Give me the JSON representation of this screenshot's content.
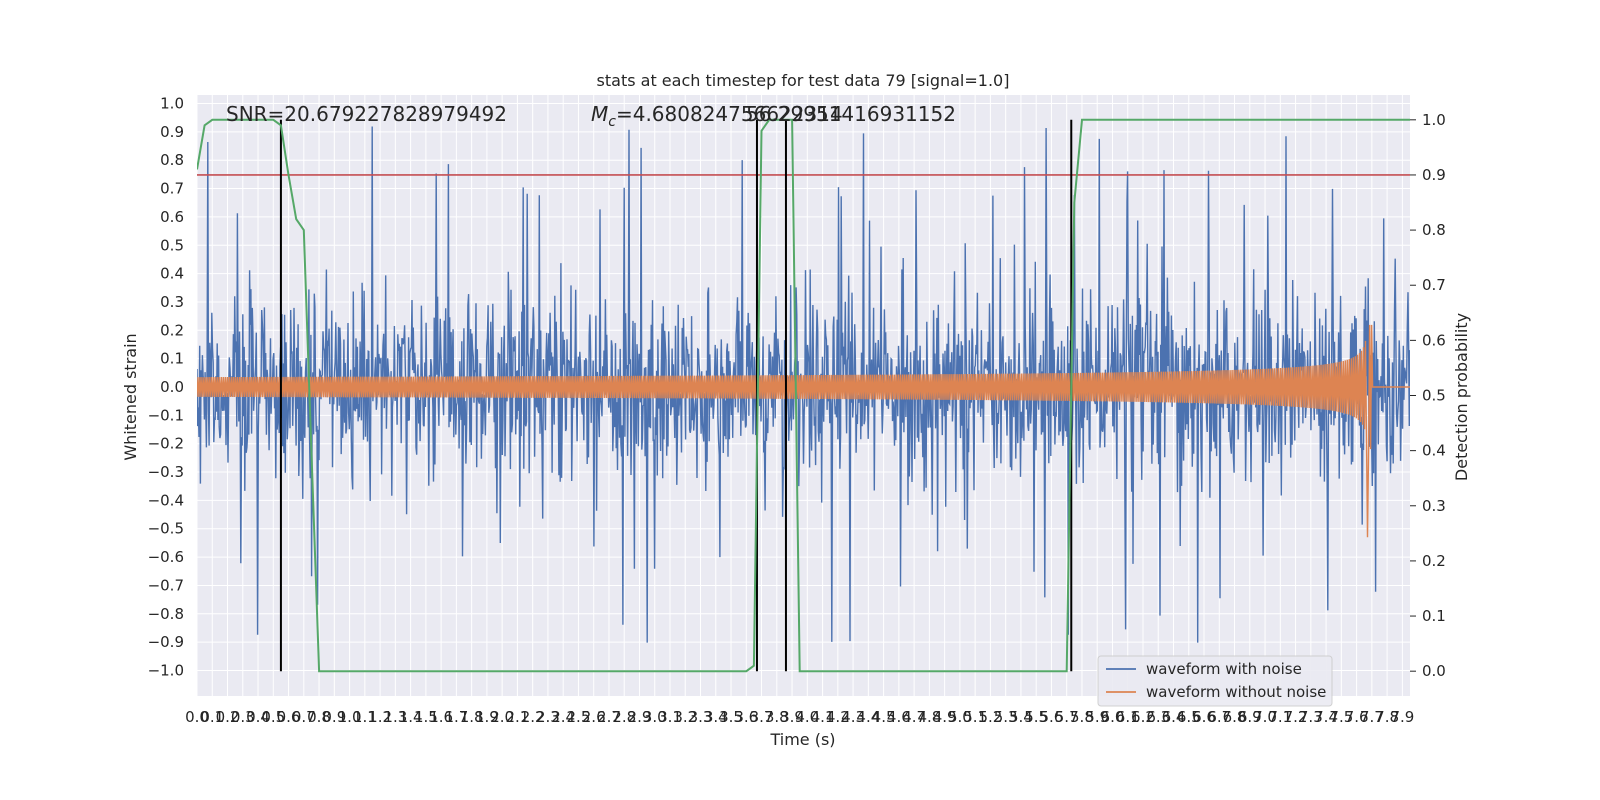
{
  "chart_data": {
    "type": "line",
    "title": "stats at each timestep for test data 79 [signal=1.0]",
    "xlabel": "Time (s)",
    "ylabel": "Whitened strain",
    "y2label": "Detection probability",
    "xlim": [
      0,
      7.95
    ],
    "ylim": [
      -1.09,
      1.03
    ],
    "y2lim": [
      -0.045,
      1.045
    ],
    "x_ticks": [
      "0.0",
      "0.1",
      "0.2",
      "0.3",
      "0.4",
      "0.5",
      "0.6",
      "0.7",
      "0.8",
      "0.9",
      "1.0",
      "1.1",
      "1.2",
      "1.3",
      "1.4",
      "1.5",
      "1.6",
      "1.7",
      "1.8",
      "1.9",
      "2.0",
      "2.1",
      "2.2",
      "2.3",
      "2.4",
      "2.5",
      "2.6",
      "2.7",
      "2.8",
      "2.9",
      "3.0",
      "3.1",
      "3.2",
      "3.3",
      "3.4",
      "3.5",
      "3.6",
      "3.7",
      "3.8",
      "3.9",
      "4.0",
      "4.1",
      "4.2",
      "4.3",
      "4.4",
      "4.5",
      "4.6",
      "4.7",
      "4.8",
      "4.9",
      "5.0",
      "5.1",
      "5.2",
      "5.3",
      "5.4",
      "5.5",
      "5.6",
      "5.7",
      "5.8",
      "5.9",
      "6.0",
      "6.1",
      "6.2",
      "6.3",
      "6.4",
      "6.5",
      "6.6",
      "6.7",
      "6.8",
      "6.9",
      "7.0",
      "7.1",
      "7.2",
      "7.3",
      "7.4",
      "7.5",
      "7.6",
      "7.7",
      "7.8",
      "7.9"
    ],
    "y_ticks": [
      "1.0",
      "0.9",
      "0.8",
      "0.7",
      "0.6",
      "0.5",
      "0.4",
      "0.3",
      "0.2",
      "0.1",
      "0.0",
      "−0.1",
      "−0.2",
      "−0.3",
      "−0.4",
      "−0.5",
      "−0.6",
      "−0.7",
      "−0.8",
      "−0.9",
      "−1.0"
    ],
    "y2_ticks": [
      "1.0",
      "0.9",
      "0.8",
      "0.7",
      "0.6",
      "0.5",
      "0.4",
      "0.3",
      "0.2",
      "0.1",
      "0.0"
    ],
    "annotations": {
      "snr": "SNR=20.679227828979492",
      "mc": "=4.680824756622314",
      "mc_symbol": "M",
      "mc_subscript": "c",
      "overlap": "56.29951416931152"
    },
    "series": [
      {
        "name": "waveform with noise",
        "color": "#4c72b0",
        "style": "noise",
        "amplitude_typical": 0.35,
        "amplitude_peak": 0.92
      },
      {
        "name": "waveform without noise",
        "color": "#dd8452",
        "style": "chirp",
        "start_amplitude": 0.035,
        "peak_amplitude": 0.37,
        "peak_x": 7.67,
        "min_value": -0.53,
        "end_x": 7.7
      }
    ],
    "detection_probability": {
      "color": "#55a868",
      "x": [
        0.0,
        0.05,
        0.1,
        0.15,
        0.2,
        0.3,
        0.4,
        0.5,
        0.55,
        0.6,
        0.65,
        0.7,
        0.75,
        0.8,
        3.6,
        3.65,
        3.7,
        3.75,
        3.8,
        3.85,
        3.9,
        3.95,
        5.65,
        5.7,
        5.75,
        5.8,
        5.85,
        5.9,
        7.95
      ],
      "y": [
        0.91,
        0.99,
        1.0,
        1.0,
        1.0,
        1.0,
        1.0,
        1.0,
        0.99,
        0.9,
        0.82,
        0.8,
        0.4,
        0.0,
        0.0,
        0.01,
        0.98,
        1.0,
        1.0,
        1.0,
        1.0,
        0.0,
        0.0,
        0.0,
        0.85,
        1.0,
        1.0,
        1.0,
        1.0
      ]
    },
    "threshold": {
      "value": 0.9,
      "color": "#c44e52"
    },
    "vertical_lines": [
      0.55,
      3.67,
      3.86,
      5.73
    ],
    "legend": {
      "placement": "lower-right"
    }
  }
}
